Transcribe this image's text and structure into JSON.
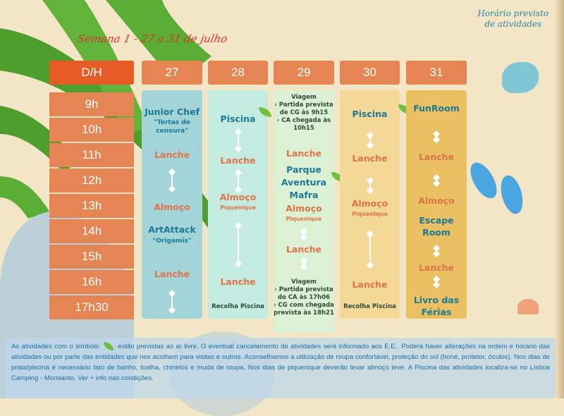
{
  "title": "Semana 1 - 27 a 31 de julho",
  "corner_title": [
    "Horário previsto",
    "de atividades"
  ],
  "header": {
    "dh": "D/H",
    "days": [
      "27",
      "28",
      "29",
      "30",
      "31"
    ]
  },
  "times": [
    "9h",
    "10h",
    "11h",
    "12h",
    "13h",
    "14h",
    "15h",
    "16h",
    "17h30"
  ],
  "day27": {
    "a": "Junior Chef",
    "a_sub": "\"Tortas de cenoura\"",
    "b": "Lanche",
    "c": "Almoço",
    "d": "ArtAttack",
    "d_sub": "\"Origamis\"",
    "e": "Lanche"
  },
  "day28": {
    "a": "Piscina",
    "b": "Lanche",
    "c": "Almoço",
    "c_sub": "Piquenique",
    "d": "Lanche",
    "e": "Recolha Piscina"
  },
  "day29": {
    "a": [
      "Viagem",
      "› Partida prevista",
      "de CG às 9h15",
      "› CA chegada às",
      "10h15"
    ],
    "b": "Lanche",
    "c": [
      "Parque",
      "Aventura",
      "Mafra"
    ],
    "d": "Almoço",
    "d_sub": "Piquenique",
    "e": "Lanche",
    "f": [
      "Viagem",
      "› Partida prevista",
      "do CA às 17h06",
      "› CG com chegada",
      "prevista às 18h21"
    ]
  },
  "day30": {
    "a": "Piscina",
    "b": "Lanche",
    "c": "Almoço",
    "c_sub": "Piquenique",
    "d": "Lanche",
    "e": "Recolha Piscina"
  },
  "day31": {
    "a": "FunRoom",
    "b": "Lanche",
    "c": "Almoço",
    "d": [
      "Escape",
      "Room"
    ],
    "e": "Lanche",
    "f": [
      "Livro das",
      "Férias"
    ]
  },
  "note": {
    "pre": "As atividades com o símbolo",
    "text": "estão previstas ao ar livre. O eventual cancelamento de atividades será informado aos E.E.. Poderá haver alterações na ordem e horário das atividades ou por parte das entidades que nos acolhem para visitas e outros. Aconselhamos a utilização de roupa confortável, proteção do sol (boné, protetor, óculos). Nos dias de praia/piscina é necessário fato de banho, toalha, chinelos e muda de roupa. Nos dias de piquenique deverão levar almoço leve. A Piscina das atividades localiza-se no Lisboa Camping - Monsanto. Ver + info nas condições."
  },
  "colors": {
    "accent": "#e65a25",
    "header": "#e48553",
    "blue": "#1d7898",
    "orange": "#e0734a"
  }
}
